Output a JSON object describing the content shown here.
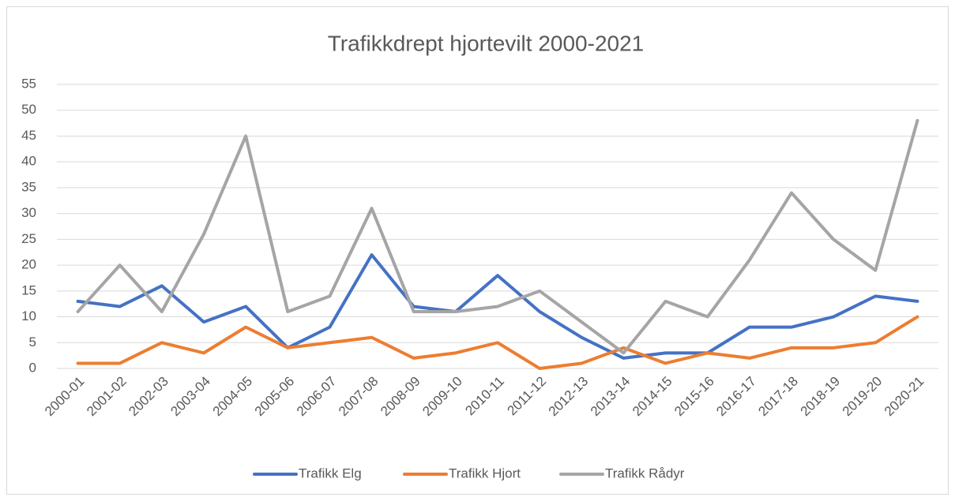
{
  "chart_data": {
    "type": "line",
    "title": "Trafikkdrept hjortevilt 2000-2021",
    "categories": [
      "2000-01",
      "2001-02",
      "2002-03",
      "2003-04",
      "2004-05",
      "2005-06",
      "2006-07",
      "2007-08",
      "2008-09",
      "2009-10",
      "2010-11",
      "2011-12",
      "2012-13",
      "2013-14",
      "2014-15",
      "2015-16",
      "2016-17",
      "2017-18",
      "2018-19",
      "2019-20",
      "2020-21"
    ],
    "series": [
      {
        "name": "Trafikk Elg",
        "color": "#4472c4",
        "values": [
          13,
          12,
          16,
          9,
          12,
          4,
          8,
          22,
          12,
          11,
          18,
          11,
          6,
          2,
          3,
          3,
          8,
          8,
          10,
          14,
          13
        ]
      },
      {
        "name": "Trafikk Hjort",
        "color": "#ed7d31",
        "values": [
          1,
          1,
          5,
          3,
          8,
          4,
          5,
          6,
          2,
          3,
          5,
          0,
          1,
          4,
          1,
          3,
          2,
          4,
          4,
          5,
          10
        ]
      },
      {
        "name": "Trafikk Rådyr",
        "color": "#a5a5a5",
        "values": [
          11,
          20,
          11,
          26,
          45,
          11,
          14,
          31,
          11,
          11,
          12,
          15,
          9,
          3,
          13,
          10,
          21,
          34,
          25,
          19,
          48
        ]
      }
    ],
    "ylim": [
      0,
      55
    ],
    "yticks": [
      0,
      5,
      10,
      15,
      20,
      25,
      30,
      35,
      40,
      45,
      50,
      55
    ],
    "grid": true,
    "legend": "bottom"
  }
}
